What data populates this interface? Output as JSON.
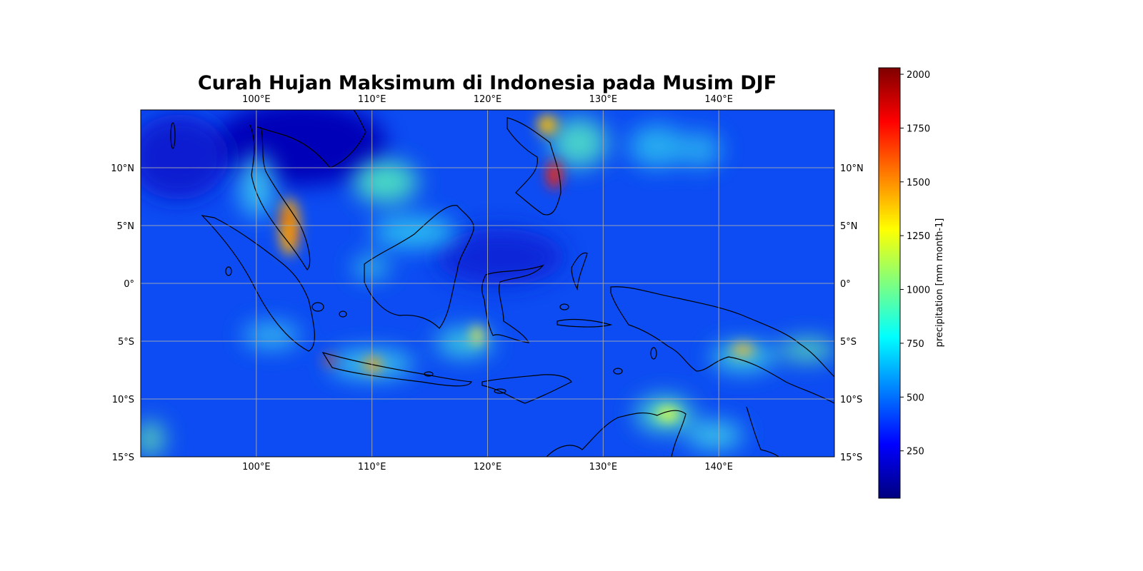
{
  "title": "Curah Hujan Maksimum di Indonesia pada Musim DJF",
  "map": {
    "lon_range": [
      90,
      150
    ],
    "lat_range": [
      -15,
      15
    ],
    "lon_ticks": [
      {
        "value": 100,
        "label": "100°E"
      },
      {
        "value": 110,
        "label": "110°E"
      },
      {
        "value": 120,
        "label": "120°E"
      },
      {
        "value": 130,
        "label": "130°E"
      },
      {
        "value": 140,
        "label": "140°E"
      }
    ],
    "lat_ticks": [
      {
        "value": 10,
        "label": "10°N"
      },
      {
        "value": 5,
        "label": "5°N"
      },
      {
        "value": 0,
        "label": "0°"
      },
      {
        "value": -5,
        "label": "5°S"
      },
      {
        "value": -10,
        "label": "10°S"
      },
      {
        "value": -15,
        "label": "15°S"
      }
    ],
    "gridlines": true,
    "colormap": "jet"
  },
  "colorbar": {
    "label": "precipitation [mm month-1]",
    "range": [
      30,
      2030
    ],
    "ticks": [
      250,
      500,
      750,
      1000,
      1250,
      1500,
      1750,
      2000
    ]
  },
  "colors": {
    "jet": [
      "#00007f",
      "#0000ff",
      "#007fff",
      "#00ffff",
      "#7fff7f",
      "#ffff00",
      "#ff7f00",
      "#ff0000",
      "#7f0000"
    ],
    "coastline": "#000000",
    "grid": "#b0b0b0"
  }
}
